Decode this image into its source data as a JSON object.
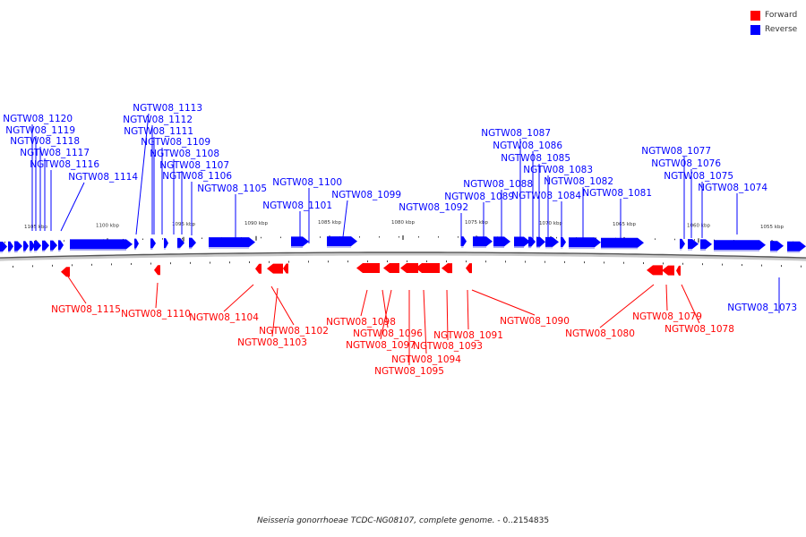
{
  "legend": {
    "forward": {
      "label": "Forward",
      "color": "#ff0000"
    },
    "reverse": {
      "label": "Reverse",
      "color": "#0000ff"
    }
  },
  "caption": {
    "organism": "Neisseria gonorrhoeae TCDC-NG08107, complete genome.",
    "range": " - 0..2154835"
  },
  "scale_ticks": [
    "1105 kbp",
    "1100 kbp",
    "1095 kbp",
    "1090 kbp",
    "1085 kbp",
    "1080 kbp",
    "1075 kbp",
    "1070 kbp",
    "1065 kbp",
    "1060 kbp",
    "1055 kbp"
  ],
  "reverse_genes": [
    "NGTW08_1120",
    "NGTW08_1119",
    "NGTW08_1118",
    "NGTW08_1117",
    "NGTW08_1116",
    "NGTW08_1114",
    "NGTW08_1113",
    "NGTW08_1112",
    "NGTW08_1111",
    "NGTW08_1109",
    "NGTW08_1108",
    "NGTW08_1107",
    "NGTW08_1106",
    "NGTW08_1105",
    "NGTW08_1100",
    "NGTW08_1101",
    "NGTW08_1099",
    "NGTW08_1092",
    "NGTW08_1088",
    "NGTW08_1089",
    "NGTW08_1087",
    "NGTW08_1086",
    "NGTW08_1085",
    "NGTW08_1083",
    "NGTW08_1084",
    "NGTW08_1082",
    "NGTW08_1081",
    "NGTW08_1077",
    "NGTW08_1076",
    "NGTW08_1075",
    "NGTW08_1074",
    "NGTW08_1073"
  ],
  "forward_genes": [
    "NGTW08_1115",
    "NGTW08_1110",
    "NGTW08_1104",
    "NGTW08_1102",
    "NGTW08_1103",
    "NGTW08_1098",
    "NGTW08_1096",
    "NGTW08_1097",
    "NGTW08_1094",
    "NGTW08_1095",
    "NGTW08_1093",
    "NGTW08_1091",
    "NGTW08_1090",
    "NGTW08_1080",
    "NGTW08_1079",
    "NGTW08_1078"
  ]
}
